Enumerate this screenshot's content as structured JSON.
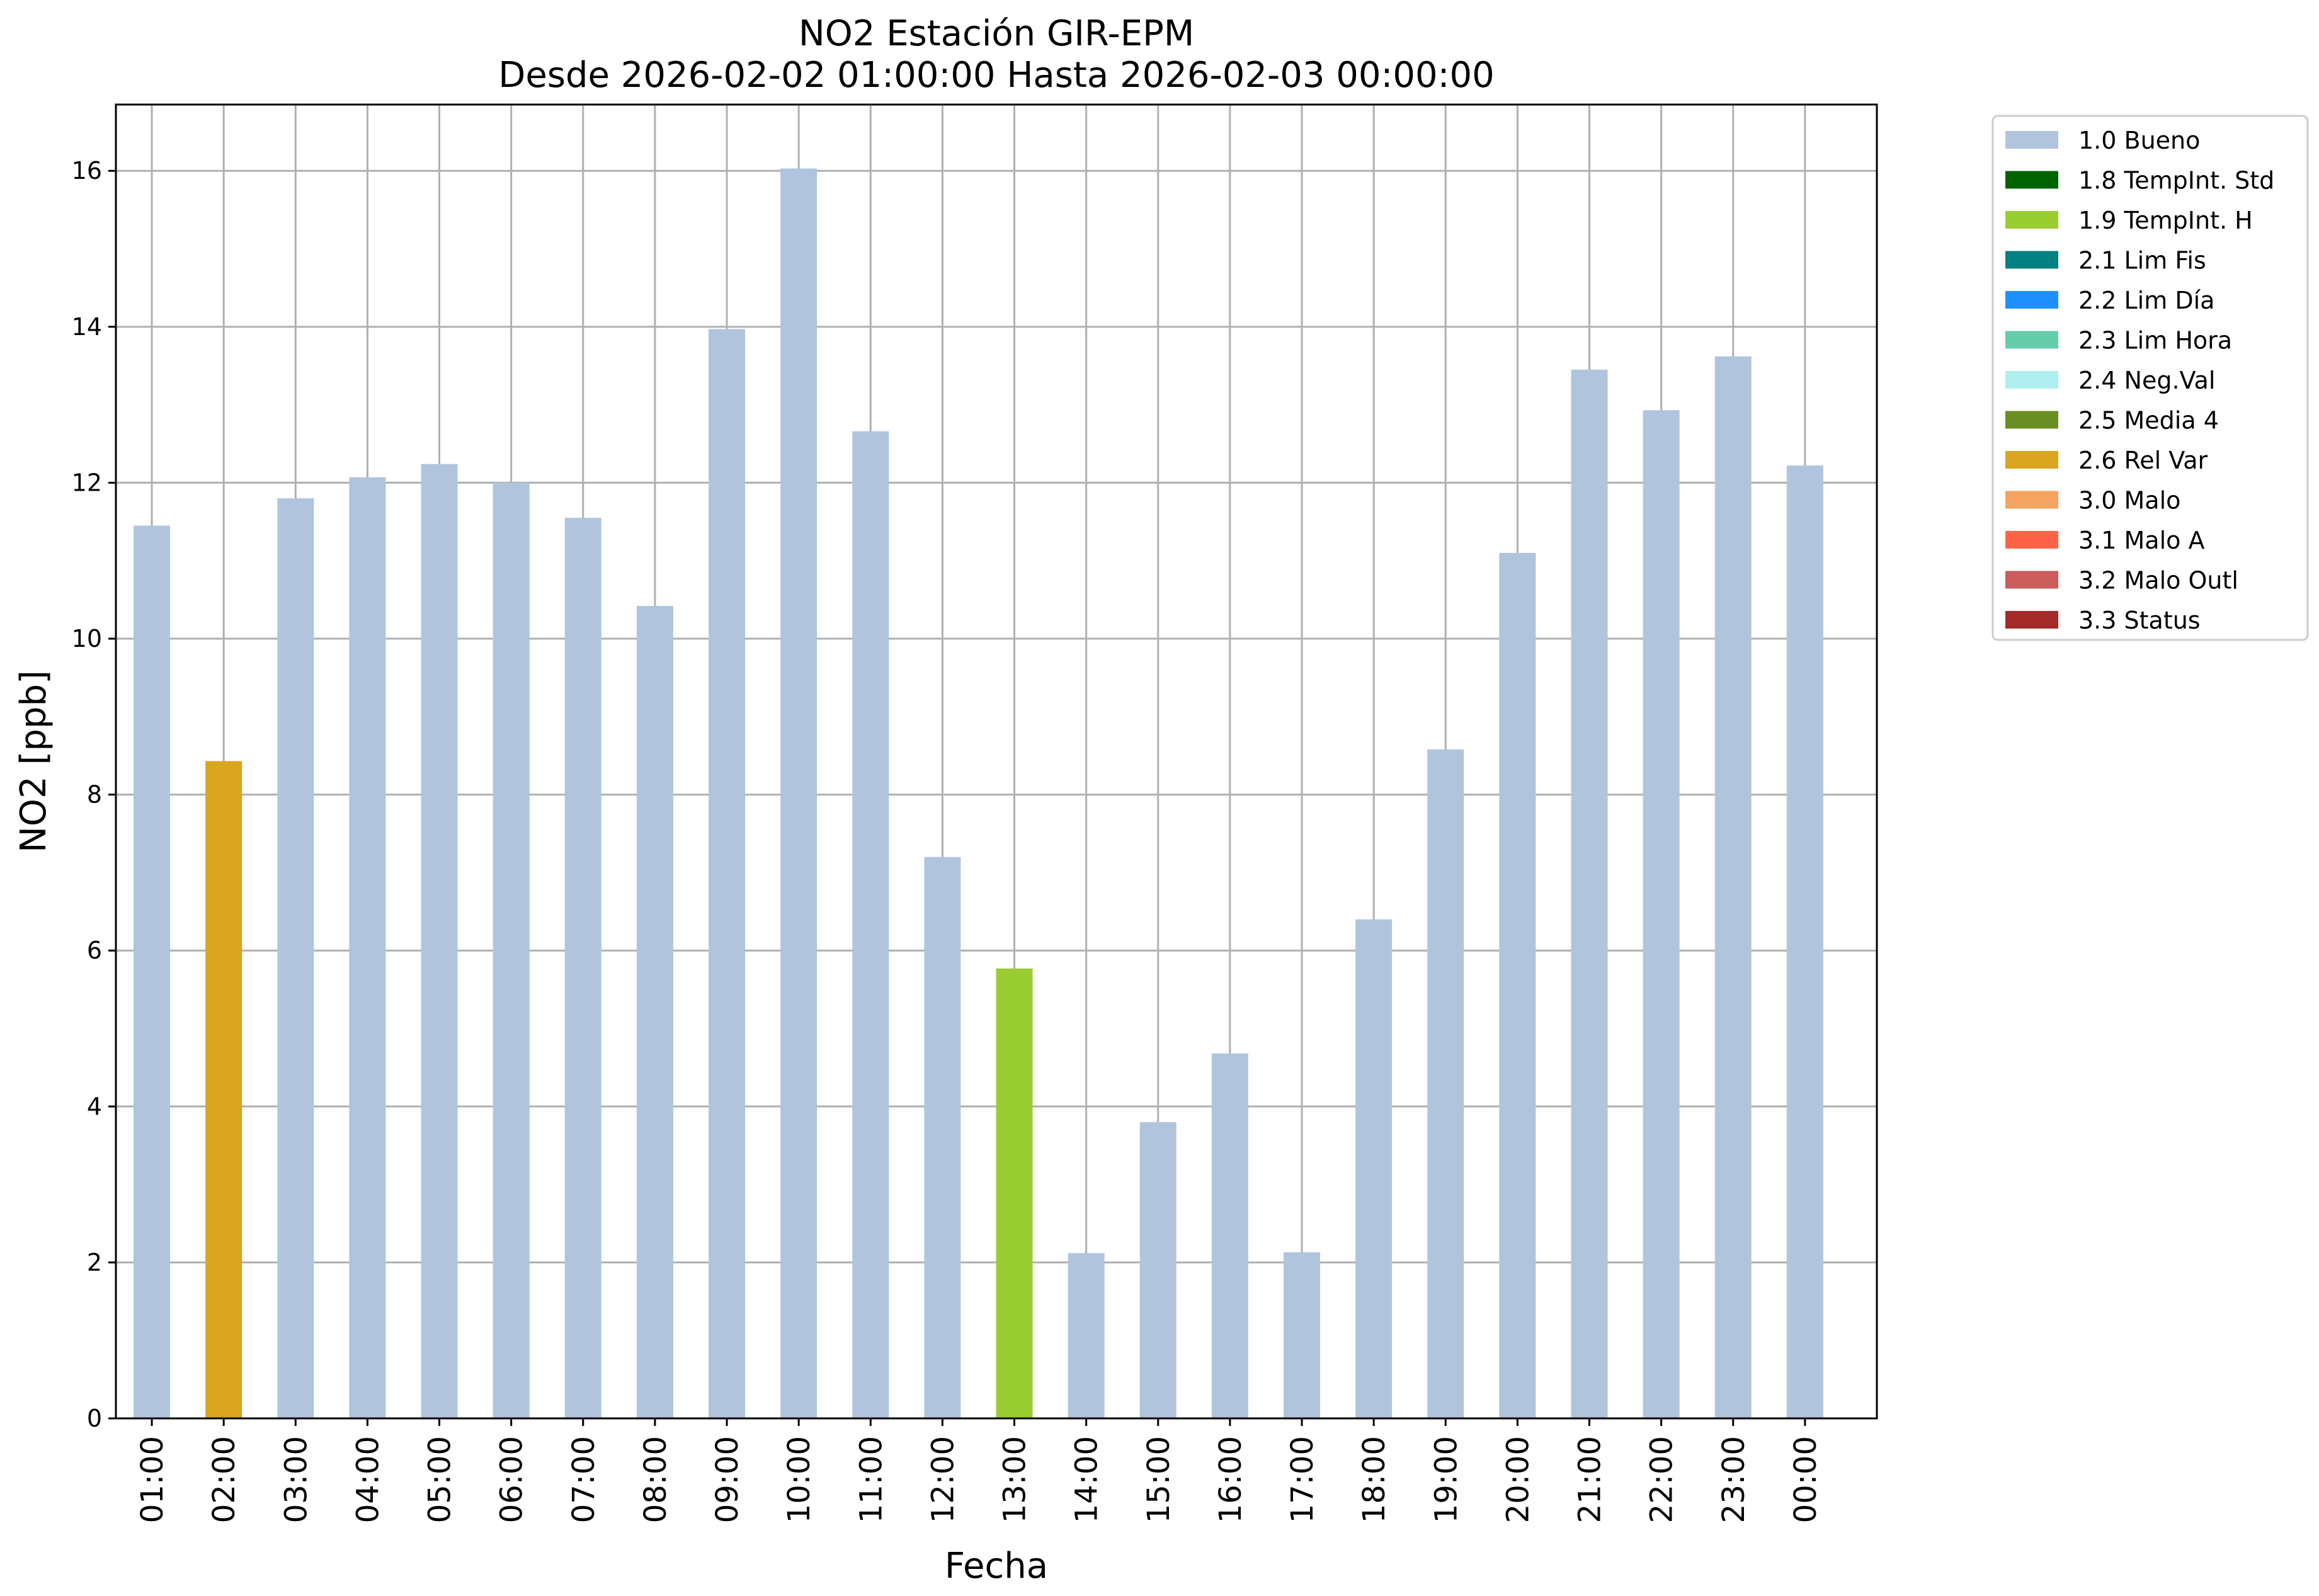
{
  "chart_data": {
    "type": "bar",
    "title": "NO2 Estación GIR-EPM",
    "subtitle": "Desde 2026-02-02 01:00:00 Hasta 2026-02-03 00:00:00",
    "xlabel": "Fecha",
    "ylabel": "NO2 [ppb]",
    "ylim": [
      0,
      16.85
    ],
    "yticks": [
      0,
      2,
      4,
      6,
      8,
      10,
      12,
      14,
      16
    ],
    "grid": true,
    "legend_position": "outside-top-right",
    "categories": [
      "01:00",
      "02:00",
      "03:00",
      "04:00",
      "05:00",
      "06:00",
      "07:00",
      "08:00",
      "09:00",
      "10:00",
      "11:00",
      "12:00",
      "13:00",
      "14:00",
      "15:00",
      "16:00",
      "17:00",
      "18:00",
      "19:00",
      "20:00",
      "21:00",
      "22:00",
      "23:00",
      "00:00"
    ],
    "values": [
      11.45,
      8.43,
      11.8,
      12.07,
      12.24,
      12.0,
      11.55,
      10.42,
      13.97,
      16.03,
      12.66,
      7.2,
      5.77,
      2.12,
      3.8,
      4.68,
      2.13,
      6.4,
      8.58,
      11.1,
      13.45,
      12.93,
      13.62,
      12.22
    ],
    "flags": [
      "1.0 Bueno",
      "2.6 Rel Var",
      "1.0 Bueno",
      "1.0 Bueno",
      "1.0 Bueno",
      "1.0 Bueno",
      "1.0 Bueno",
      "1.0 Bueno",
      "1.0 Bueno",
      "1.0 Bueno",
      "1.0 Bueno",
      "1.0 Bueno",
      "1.9 TempInt. H",
      "1.0 Bueno",
      "1.0 Bueno",
      "1.0 Bueno",
      "1.0 Bueno",
      "1.0 Bueno",
      "1.0 Bueno",
      "1.0 Bueno",
      "1.0 Bueno",
      "1.0 Bueno",
      "1.0 Bueno",
      "1.0 Bueno"
    ],
    "legend": [
      {
        "label": "1.0 Bueno",
        "color": "#b0c4de"
      },
      {
        "label": "1.8 TempInt. Std",
        "color": "#006400"
      },
      {
        "label": "1.9 TempInt. H",
        "color": "#9acd32"
      },
      {
        "label": "2.1 Lim Fis",
        "color": "#008080"
      },
      {
        "label": "2.2 Lim Día",
        "color": "#1e90ff"
      },
      {
        "label": "2.3 Lim Hora",
        "color": "#66cdaa"
      },
      {
        "label": "2.4 Neg.Val",
        "color": "#afeeee"
      },
      {
        "label": "2.5 Media 4",
        "color": "#6b8e23"
      },
      {
        "label": "2.6 Rel Var",
        "color": "#daa520"
      },
      {
        "label": "3.0 Malo",
        "color": "#f4a460"
      },
      {
        "label": "3.1 Malo A",
        "color": "#ff6347"
      },
      {
        "label": "3.2 Malo Outl",
        "color": "#cd5c5c"
      },
      {
        "label": "3.3 Status",
        "color": "#a52a2a"
      }
    ]
  }
}
